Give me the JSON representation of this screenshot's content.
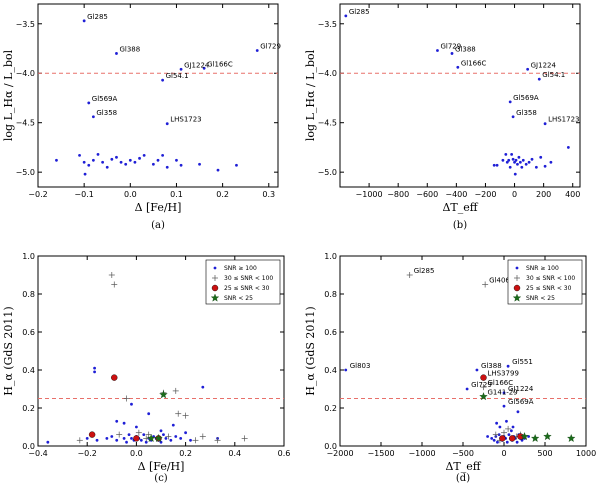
{
  "chart_data": [
    {
      "type": "scatter",
      "caption": "(a)",
      "xlabel": "Δ [Fe/H]",
      "ylabel": "log L_Hα / L_bol",
      "xlim": [
        -0.2,
        0.32
      ],
      "ylim": [
        -5.15,
        -3.3
      ],
      "xticks": [
        -0.2,
        -0.1,
        0.0,
        0.1,
        0.2,
        0.3
      ],
      "xtick_labels": [
        "−0.2",
        "−0.1",
        "0.0",
        "0.1",
        "0.2",
        "0.3"
      ],
      "yticks": [
        -5.0,
        -4.5,
        -4.0,
        -3.5
      ],
      "ytick_labels": [
        "−5.0",
        "−4.5",
        "−4.0",
        "−3.5"
      ],
      "hline": -4.0,
      "points": [
        {
          "x": -0.1,
          "y": -3.47,
          "label": "Gl285"
        },
        {
          "x": -0.03,
          "y": -3.8,
          "label": "Gl388"
        },
        {
          "x": 0.275,
          "y": -3.77,
          "label": "Gl729"
        },
        {
          "x": 0.16,
          "y": -3.95,
          "label": "Gl166C"
        },
        {
          "x": 0.11,
          "y": -3.96,
          "label": "GJ1224"
        },
        {
          "x": 0.07,
          "y": -4.07,
          "label": "Gl54.1"
        },
        {
          "x": -0.09,
          "y": -4.3,
          "label": "Gl569A"
        },
        {
          "x": -0.08,
          "y": -4.44,
          "label": "Gl358"
        },
        {
          "x": 0.08,
          "y": -4.51,
          "label": "LHS1723"
        },
        {
          "x": -0.16,
          "y": -4.88
        },
        {
          "x": -0.11,
          "y": -4.83
        },
        {
          "x": -0.1,
          "y": -4.9
        },
        {
          "x": -0.098,
          "y": -5.02
        },
        {
          "x": -0.09,
          "y": -4.93
        },
        {
          "x": -0.08,
          "y": -4.88
        },
        {
          "x": -0.07,
          "y": -4.82
        },
        {
          "x": -0.06,
          "y": -4.9
        },
        {
          "x": -0.05,
          "y": -4.95
        },
        {
          "x": -0.04,
          "y": -4.87
        },
        {
          "x": -0.03,
          "y": -4.85
        },
        {
          "x": -0.02,
          "y": -4.9
        },
        {
          "x": -0.01,
          "y": -4.92
        },
        {
          "x": 0.0,
          "y": -4.88
        },
        {
          "x": 0.01,
          "y": -4.9
        },
        {
          "x": 0.02,
          "y": -4.86
        },
        {
          "x": 0.03,
          "y": -4.83
        },
        {
          "x": 0.05,
          "y": -4.92
        },
        {
          "x": 0.06,
          "y": -4.88
        },
        {
          "x": 0.07,
          "y": -4.83
        },
        {
          "x": 0.08,
          "y": -4.95
        },
        {
          "x": 0.1,
          "y": -4.88
        },
        {
          "x": 0.11,
          "y": -4.93
        },
        {
          "x": 0.15,
          "y": -4.92
        },
        {
          "x": 0.19,
          "y": -4.98
        },
        {
          "x": 0.23,
          "y": -4.93
        }
      ]
    },
    {
      "type": "scatter",
      "caption": "(b)",
      "xlabel": "ΔT_eff",
      "ylabel": "log L_Hα / L_bol",
      "xlim": [
        -1200,
        450
      ],
      "ylim": [
        -5.15,
        -3.3
      ],
      "xticks": [
        -1000,
        -800,
        -600,
        -400,
        -200,
        0,
        200,
        400
      ],
      "xtick_labels": [
        "−1000",
        "−800",
        "−600",
        "−400",
        "−200",
        "0",
        "200",
        "400"
      ],
      "yticks": [
        -5.0,
        -4.5,
        -4.0,
        -3.5
      ],
      "ytick_labels": [
        "−5.0",
        "−4.5",
        "−4.0",
        "−3.5"
      ],
      "hline": -4.0,
      "points": [
        {
          "x": -1160,
          "y": -3.42,
          "label": "Gl285"
        },
        {
          "x": -530,
          "y": -3.77,
          "label": "Gl729"
        },
        {
          "x": -430,
          "y": -3.8,
          "label": "Gl388"
        },
        {
          "x": -390,
          "y": -3.94,
          "label": "Gl166C"
        },
        {
          "x": 90,
          "y": -3.96,
          "label": "GJ1224"
        },
        {
          "x": 170,
          "y": -4.06,
          "label": "Gl54.1"
        },
        {
          "x": -30,
          "y": -4.29,
          "label": "Gl569A"
        },
        {
          "x": -10,
          "y": -4.44,
          "label": "Gl358"
        },
        {
          "x": 210,
          "y": -4.51,
          "label": "LHS1723"
        },
        {
          "x": -140,
          "y": -4.93
        },
        {
          "x": -120,
          "y": -4.93
        },
        {
          "x": -80,
          "y": -4.88
        },
        {
          "x": -60,
          "y": -4.82
        },
        {
          "x": -50,
          "y": -4.9
        },
        {
          "x": -40,
          "y": -4.88
        },
        {
          "x": -30,
          "y": -4.95
        },
        {
          "x": -20,
          "y": -4.82
        },
        {
          "x": -10,
          "y": -4.87
        },
        {
          "x": 0,
          "y": -4.9
        },
        {
          "x": 5,
          "y": -5.02
        },
        {
          "x": 10,
          "y": -4.88
        },
        {
          "x": 20,
          "y": -4.92
        },
        {
          "x": 30,
          "y": -4.85
        },
        {
          "x": 40,
          "y": -4.9
        },
        {
          "x": 50,
          "y": -4.95
        },
        {
          "x": 60,
          "y": -4.88
        },
        {
          "x": 80,
          "y": -4.92
        },
        {
          "x": 100,
          "y": -4.9
        },
        {
          "x": 120,
          "y": -4.87
        },
        {
          "x": 150,
          "y": -4.95
        },
        {
          "x": 180,
          "y": -4.85
        },
        {
          "x": 210,
          "y": -4.94
        },
        {
          "x": 250,
          "y": -4.9
        },
        {
          "x": 370,
          "y": -4.75
        }
      ]
    },
    {
      "type": "scatter",
      "caption": "(c)",
      "xlabel": "Δ [Fe/H]",
      "ylabel": "H_α (GdS 2011)",
      "xlim": [
        -0.4,
        0.6
      ],
      "ylim": [
        0.0,
        1.0
      ],
      "xticks": [
        -0.4,
        -0.2,
        0.0,
        0.2,
        0.4,
        0.6
      ],
      "xtick_labels": [
        "−0.4",
        "−0.2",
        "0.0",
        "0.2",
        "0.4",
        "0.6"
      ],
      "yticks": [
        0.0,
        0.2,
        0.4,
        0.6,
        0.8,
        1.0
      ],
      "ytick_labels": [
        "0.0",
        "0.2",
        "0.4",
        "0.6",
        "0.8",
        "1.0"
      ],
      "hline": 0.25,
      "legend": [
        {
          "marker": "dot",
          "label": "SNR ≥ 100"
        },
        {
          "marker": "plus",
          "label": "30 ≤ SNR < 100"
        },
        {
          "marker": "circle",
          "label": "25 ≤ SNR < 30"
        },
        {
          "marker": "star",
          "label": "SNR < 25"
        }
      ],
      "dots": [
        [
          -0.36,
          0.02
        ],
        [
          -0.2,
          0.04
        ],
        [
          -0.17,
          0.41
        ],
        [
          -0.17,
          0.39
        ],
        [
          -0.16,
          0.03
        ],
        [
          -0.12,
          0.04
        ],
        [
          -0.1,
          0.05
        ],
        [
          -0.08,
          0.03
        ],
        [
          -0.05,
          0.04
        ],
        [
          -0.04,
          0.02
        ],
        [
          -0.03,
          0.06
        ],
        [
          -0.02,
          0.04
        ],
        [
          -0.01,
          0.03
        ],
        [
          0.0,
          0.05
        ],
        [
          0.01,
          0.04
        ],
        [
          0.02,
          0.03
        ],
        [
          0.03,
          0.06
        ],
        [
          0.04,
          0.02
        ],
        [
          0.05,
          0.04
        ],
        [
          0.06,
          0.03
        ],
        [
          0.07,
          0.05
        ],
        [
          0.08,
          0.04
        ],
        [
          0.09,
          0.03
        ],
        [
          0.1,
          0.02
        ],
        [
          0.11,
          0.06
        ],
        [
          0.12,
          0.04
        ],
        [
          0.14,
          0.03
        ],
        [
          0.16,
          0.05
        ],
        [
          0.18,
          0.04
        ],
        [
          0.2,
          0.07
        ],
        [
          0.22,
          0.03
        ],
        [
          0.27,
          0.31
        ],
        [
          0.33,
          0.04
        ],
        [
          -0.05,
          0.12
        ],
        [
          -0.02,
          0.22
        ],
        [
          0.0,
          0.1
        ],
        [
          0.05,
          0.17
        ],
        [
          0.1,
          0.08
        ],
        [
          -0.08,
          0.13
        ],
        [
          0.15,
          0.11
        ]
      ],
      "pluses": [
        [
          -0.1,
          0.9
        ],
        [
          -0.09,
          0.85
        ],
        [
          -0.23,
          0.03
        ],
        [
          -0.07,
          0.06
        ],
        [
          -0.04,
          0.25
        ],
        [
          0.05,
          0.06
        ],
        [
          0.11,
          0.28
        ],
        [
          0.16,
          0.29
        ],
        [
          0.17,
          0.17
        ],
        [
          0.2,
          0.16
        ],
        [
          0.24,
          0.03
        ],
        [
          0.33,
          0.03
        ],
        [
          0.44,
          0.04
        ],
        [
          0.04,
          0.04
        ],
        [
          0.01,
          0.07
        ],
        [
          0.13,
          0.05
        ],
        [
          0.27,
          0.05
        ]
      ],
      "circles": [
        [
          -0.18,
          0.06
        ],
        [
          -0.09,
          0.36
        ],
        [
          0.0,
          0.04
        ],
        [
          0.09,
          0.04
        ]
      ],
      "stars": [
        [
          0.11,
          0.27
        ],
        [
          0.06,
          0.04
        ],
        [
          0.09,
          0.04
        ]
      ]
    },
    {
      "type": "scatter",
      "caption": "(d)",
      "xlabel": "ΔT_eff",
      "ylabel": "H_α (GdS 2011)",
      "xlim": [
        -2000,
        1000
      ],
      "ylim": [
        0.0,
        1.0
      ],
      "xticks": [
        -2000,
        -1500,
        -1000,
        -500,
        0,
        500,
        1000
      ],
      "xtick_labels": [
        "−2000",
        "−1500",
        "−1000",
        "−500",
        "0",
        "500",
        "1000"
      ],
      "yticks": [
        0.0,
        0.2,
        0.4,
        0.6,
        0.8,
        1.0
      ],
      "ytick_labels": [
        "0.0",
        "0.2",
        "0.4",
        "0.6",
        "0.8",
        "1.0"
      ],
      "hline": 0.25,
      "legend": [
        {
          "marker": "dot",
          "label": "SNR ≥ 100"
        },
        {
          "marker": "plus",
          "label": "30 ≤ SNR < 100"
        },
        {
          "marker": "circle",
          "label": "25 ≤ SNR < 30"
        },
        {
          "marker": "star",
          "label": "SNR < 25"
        }
      ],
      "labeled": [
        {
          "x": -1150,
          "y": 0.9,
          "label": "Gl285",
          "marker": "plus"
        },
        {
          "x": -230,
          "y": 0.85,
          "label": "Gl406",
          "marker": "plus"
        },
        {
          "x": -1930,
          "y": 0.4,
          "label": "Gl803",
          "marker": "dot"
        },
        {
          "x": -330,
          "y": 0.4,
          "label": "Gl388",
          "marker": "dot"
        },
        {
          "x": 50,
          "y": 0.42,
          "label": "Gl551",
          "marker": "dot"
        },
        {
          "x": -250,
          "y": 0.36,
          "label": "LHS3799",
          "marker": "circle"
        },
        {
          "x": -450,
          "y": 0.3,
          "label": "Gl729",
          "marker": "dot"
        },
        {
          "x": -250,
          "y": 0.31,
          "label": "Gl166C",
          "marker": "plus"
        },
        {
          "x": 0,
          "y": 0.28,
          "label": "GJ1224",
          "marker": "dot"
        },
        {
          "x": -250,
          "y": 0.26,
          "label": "G141-29",
          "marker": "star"
        },
        {
          "x": 0,
          "y": 0.21,
          "label": "Gl569A",
          "marker": "dot"
        }
      ],
      "dots": [
        [
          -150,
          0.04
        ],
        [
          -120,
          0.03
        ],
        [
          -100,
          0.05
        ],
        [
          -80,
          0.02
        ],
        [
          -60,
          0.06
        ],
        [
          -40,
          0.04
        ],
        [
          -20,
          0.03
        ],
        [
          0,
          0.05
        ],
        [
          20,
          0.04
        ],
        [
          40,
          0.02
        ],
        [
          60,
          0.06
        ],
        [
          80,
          0.04
        ],
        [
          100,
          0.03
        ],
        [
          120,
          0.05
        ],
        [
          140,
          0.04
        ],
        [
          160,
          0.02
        ],
        [
          180,
          0.06
        ],
        [
          200,
          0.04
        ],
        [
          220,
          0.03
        ],
        [
          -200,
          0.05
        ],
        [
          -50,
          0.1
        ],
        [
          30,
          0.13
        ],
        [
          90,
          0.08
        ],
        [
          170,
          0.18
        ],
        [
          -90,
          0.12
        ],
        [
          110,
          0.1
        ],
        [
          250,
          0.04
        ],
        [
          300,
          0.05
        ]
      ],
      "pluses": [
        [
          -100,
          0.06
        ],
        [
          0,
          0.07
        ],
        [
          100,
          0.04
        ],
        [
          200,
          0.06
        ],
        [
          -50,
          0.03
        ],
        [
          150,
          0.05
        ],
        [
          50,
          0.09
        ]
      ],
      "circles": [
        [
          -20,
          0.04
        ],
        [
          100,
          0.04
        ],
        [
          200,
          0.05
        ]
      ],
      "stars": [
        [
          380,
          0.04
        ],
        [
          530,
          0.05
        ],
        [
          820,
          0.04
        ],
        [
          250,
          0.05
        ]
      ]
    }
  ]
}
